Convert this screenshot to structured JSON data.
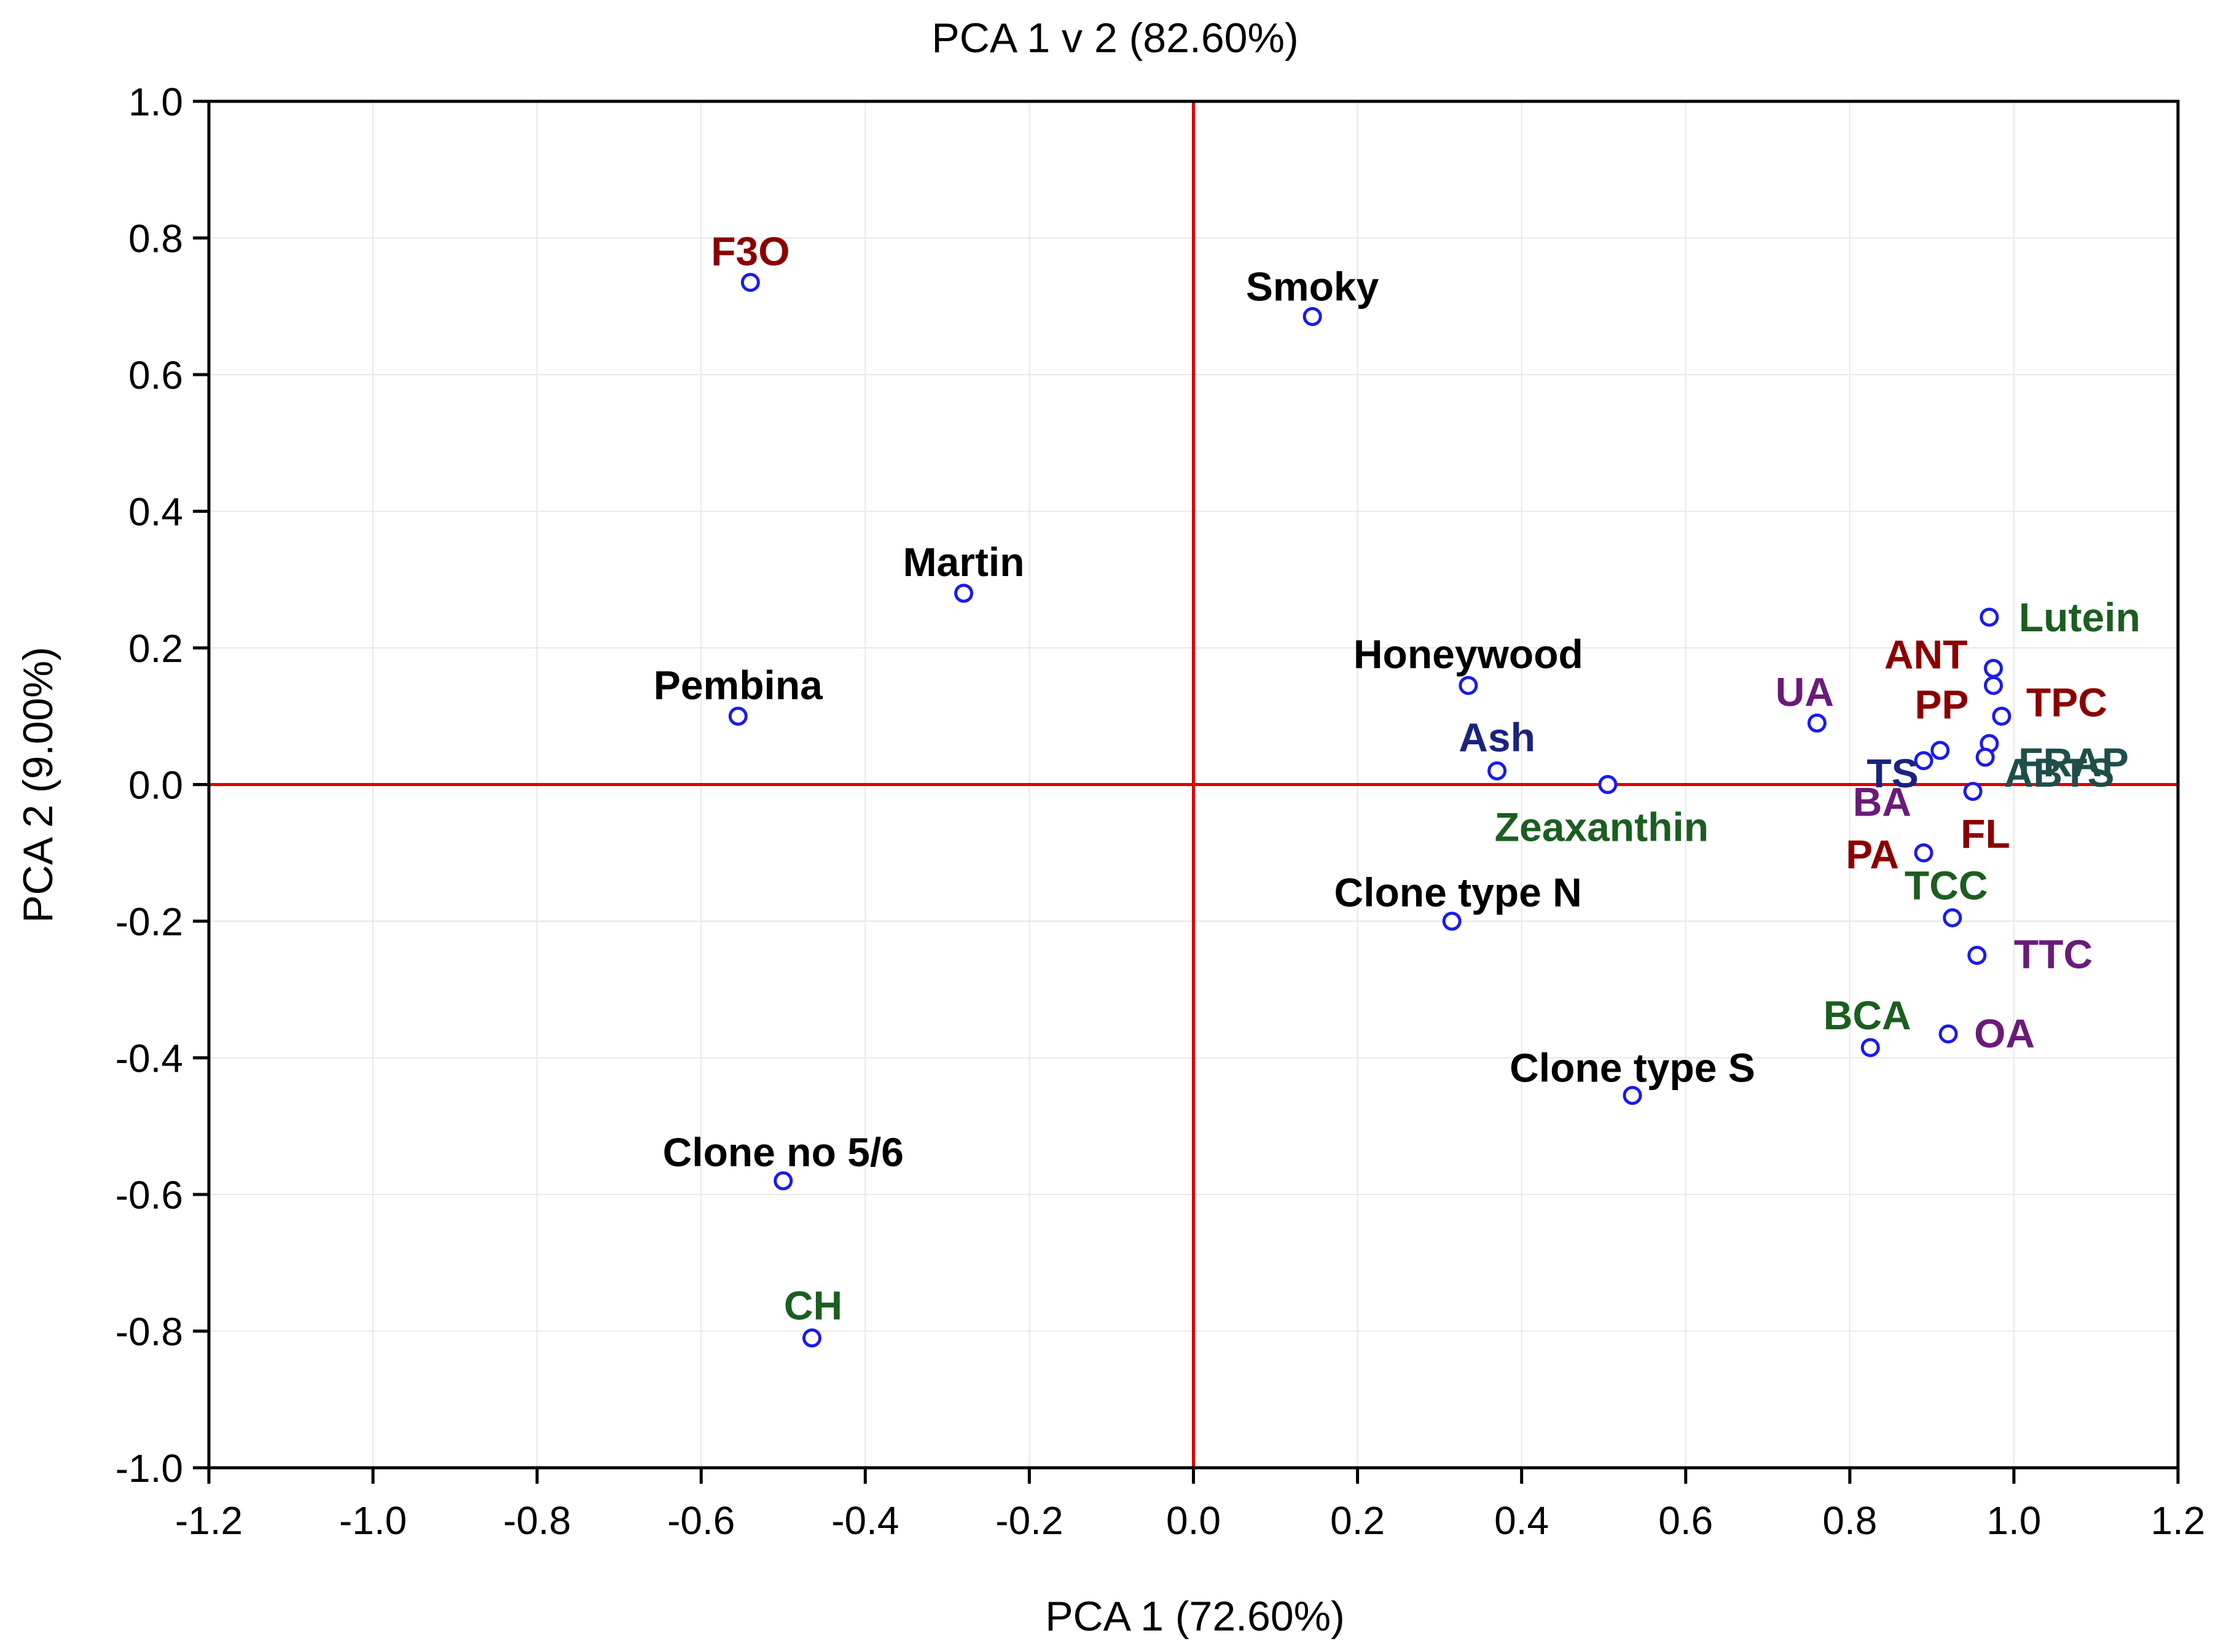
{
  "chart_data": {
    "type": "scatter",
    "title": "PCA 1 v 2 (82.60%)",
    "xlabel": "PCA 1 (72.60%)",
    "ylabel": "PCA 2 (9.00%)",
    "xlim": [
      -1.2,
      1.2
    ],
    "ylim": [
      -1.0,
      1.0
    ],
    "xticks": [
      -1.2,
      -1.0,
      -0.8,
      -0.6,
      -0.4,
      -0.2,
      0.0,
      0.2,
      0.4,
      0.6,
      0.8,
      1.0,
      1.2
    ],
    "yticks": [
      -1.0,
      -0.8,
      -0.6,
      -0.4,
      -0.2,
      0.0,
      0.2,
      0.4,
      0.6,
      0.8,
      1.0
    ],
    "grid": true,
    "reference_lines": {
      "x": 0.0,
      "y": 0.0,
      "color": "#e00000"
    },
    "marker": {
      "shape": "open-circle",
      "color": "#1a1aee"
    },
    "points": [
      {
        "label": "F3O",
        "x": -0.54,
        "y": 0.735,
        "color": "#8b0000"
      },
      {
        "label": "Smoky",
        "x": 0.145,
        "y": 0.685,
        "color": "#000000"
      },
      {
        "label": "Martin",
        "x": -0.28,
        "y": 0.28,
        "color": "#000000"
      },
      {
        "label": "Pembina",
        "x": -0.555,
        "y": 0.1,
        "color": "#000000"
      },
      {
        "label": "Honeywood",
        "x": 0.335,
        "y": 0.145,
        "color": "#000000"
      },
      {
        "label": "Ash",
        "x": 0.37,
        "y": 0.02,
        "color": "#1a237e"
      },
      {
        "label": "Zeaxanthin",
        "x": 0.505,
        "y": 0.0,
        "color": "#1b5e20"
      },
      {
        "label": "Clone type N",
        "x": 0.315,
        "y": -0.2,
        "color": "#000000"
      },
      {
        "label": "Clone type S",
        "x": 0.535,
        "y": -0.455,
        "color": "#000000"
      },
      {
        "label": "Clone no 5/6",
        "x": -0.5,
        "y": -0.58,
        "color": "#000000"
      },
      {
        "label": "CH",
        "x": -0.465,
        "y": -0.81,
        "color": "#1b5e20"
      },
      {
        "label": "Lutein",
        "x": 0.97,
        "y": 0.245,
        "color": "#1b5e20"
      },
      {
        "label": "ANT",
        "x": 0.975,
        "y": 0.17,
        "color": "#8b0000"
      },
      {
        "label": "UA",
        "x": 0.76,
        "y": 0.09,
        "color": "#6a1b7a"
      },
      {
        "label": "PP",
        "x": 0.975,
        "y": 0.145,
        "color": "#8b0000"
      },
      {
        "label": "TPC",
        "x": 0.985,
        "y": 0.1,
        "color": "#8b0000"
      },
      {
        "label": "TS",
        "x": 0.91,
        "y": 0.05,
        "color": "#1a237e"
      },
      {
        "label": "ABTS",
        "x": 0.97,
        "y": 0.06,
        "color": "#1f4e4a"
      },
      {
        "label": "BA",
        "x": 0.89,
        "y": 0.035,
        "color": "#6a1b7a"
      },
      {
        "label": "FRAP",
        "x": 0.965,
        "y": 0.04,
        "color": "#1f4e4a"
      },
      {
        "label": "FL",
        "x": 0.95,
        "y": -0.01,
        "color": "#8b0000"
      },
      {
        "label": "PA",
        "x": 0.89,
        "y": -0.1,
        "color": "#8b0000"
      },
      {
        "label": "TCC",
        "x": 0.925,
        "y": -0.195,
        "color": "#1b5e20"
      },
      {
        "label": "TTC",
        "x": 0.955,
        "y": -0.25,
        "color": "#6a1b7a"
      },
      {
        "label": "BCA",
        "x": 0.825,
        "y": -0.385,
        "color": "#1b5e20"
      },
      {
        "label": "OA",
        "x": 0.92,
        "y": -0.365,
        "color": "#6a1b7a"
      }
    ]
  }
}
